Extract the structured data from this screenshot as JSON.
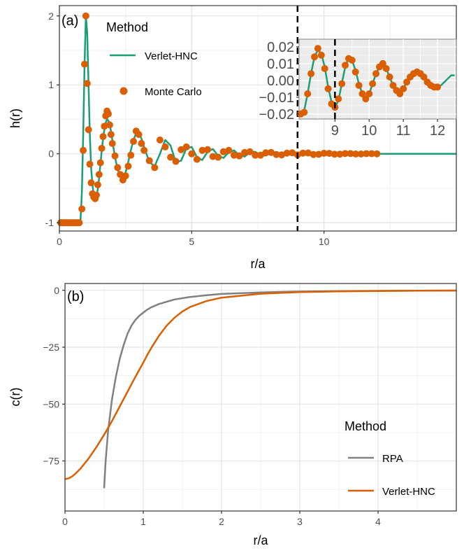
{
  "chart_data": [
    {
      "type": "line+scatter",
      "panel_label": "(a)",
      "xlabel": "r/a",
      "ylabel": "h(r)",
      "xlim": [
        0,
        15
      ],
      "ylim": [
        -1.12,
        2.15
      ],
      "xticks": [
        0,
        5,
        10
      ],
      "xtick_labels": [
        "0",
        "5",
        "10"
      ],
      "yticks": [
        -1,
        0,
        1,
        2
      ],
      "ytick_labels": [
        "-1",
        "0",
        "1",
        "2"
      ],
      "legend": {
        "title": "Method",
        "position": "top-left",
        "entries": [
          {
            "label": "Verlet-HNC",
            "kind": "line",
            "color": "#1b9e77"
          },
          {
            "label": "Monte Carlo",
            "kind": "point",
            "color": "#d95f02"
          }
        ]
      },
      "vline": 9,
      "series": [
        {
          "name": "Verlet-HNC",
          "kind": "line",
          "color": "#1b9e77",
          "x": [
            0,
            0.7,
            0.8,
            0.85,
            0.9,
            0.95,
            1.0,
            1.05,
            1.1,
            1.15,
            1.2,
            1.25,
            1.3,
            1.35,
            1.4,
            1.45,
            1.5,
            1.55,
            1.6,
            1.65,
            1.7,
            1.75,
            1.8,
            1.85,
            1.9,
            1.95,
            2.0,
            2.1,
            2.2,
            2.3,
            2.4,
            2.5,
            2.6,
            2.7,
            2.8,
            2.9,
            3.0,
            3.1,
            3.2,
            3.4,
            3.6,
            3.8,
            4.0,
            4.2,
            4.4,
            4.6,
            4.8,
            5.0,
            5.2,
            5.4,
            5.6,
            5.8,
            6.0,
            6.2,
            6.4,
            6.6,
            6.8,
            7.0,
            7.2,
            7.4,
            7.6,
            7.8,
            8.0,
            8.2,
            8.4,
            8.6,
            8.8,
            9.0,
            9.2,
            9.4,
            9.6,
            9.8,
            10.0,
            10.2,
            10.4,
            10.6,
            10.8,
            11.0,
            11.2,
            11.4,
            11.6,
            11.8,
            12.0,
            12.5,
            13.0,
            13.5,
            14.0,
            14.5,
            15.0
          ],
          "y": [
            -1.0,
            -1.0,
            -0.95,
            -0.55,
            0.3,
            1.3,
            2.0,
            1.75,
            1.0,
            0.3,
            -0.2,
            -0.45,
            -0.6,
            -0.65,
            -0.62,
            -0.52,
            -0.35,
            -0.15,
            0.05,
            0.22,
            0.35,
            0.45,
            0.5,
            0.48,
            0.42,
            0.33,
            0.2,
            -0.05,
            -0.22,
            -0.33,
            -0.35,
            -0.27,
            -0.12,
            0.05,
            0.2,
            0.3,
            0.3,
            0.22,
            0.1,
            -0.12,
            -0.18,
            0.0,
            0.2,
            0.12,
            -0.12,
            -0.1,
            0.08,
            0.1,
            -0.05,
            -0.09,
            0.03,
            0.07,
            -0.03,
            -0.06,
            0.02,
            0.05,
            -0.02,
            -0.04,
            0.02,
            0.03,
            -0.02,
            -0.025,
            0.015,
            0.02,
            -0.01,
            -0.02,
            0.01,
            0.015,
            -0.01,
            -0.01,
            0.01,
            0.01,
            -0.005,
            -0.008,
            0.005,
            0.006,
            -0.004,
            -0.005,
            0.003,
            0.004,
            -0.002,
            -0.003,
            0.0,
            0.0,
            0.0,
            0.0,
            0.0,
            0.0,
            0.0
          ]
        },
        {
          "name": "Monte Carlo",
          "kind": "point",
          "color": "#d95f02",
          "x": [
            0.05,
            0.12,
            0.19,
            0.26,
            0.33,
            0.4,
            0.47,
            0.54,
            0.61,
            0.68,
            0.75,
            0.85,
            0.9,
            0.95,
            1.0,
            1.05,
            1.1,
            1.15,
            1.2,
            1.25,
            1.3,
            1.35,
            1.4,
            1.45,
            1.5,
            1.55,
            1.6,
            1.65,
            1.7,
            1.75,
            1.8,
            1.85,
            1.9,
            1.95,
            2.0,
            2.1,
            2.2,
            2.3,
            2.4,
            2.5,
            2.6,
            2.7,
            2.8,
            2.9,
            3.0,
            3.1,
            3.2,
            3.4,
            3.6,
            3.8,
            4.0,
            4.2,
            4.4,
            4.6,
            4.8,
            5.0,
            5.2,
            5.4,
            5.6,
            5.8,
            6.0,
            6.2,
            6.4,
            6.6,
            6.8,
            7.0,
            7.2,
            7.4,
            7.6,
            7.8,
            8.0,
            8.2,
            8.4,
            8.6,
            8.8,
            9.0,
            9.2,
            9.4,
            9.6,
            9.8,
            10.0,
            10.2,
            10.4,
            10.6,
            10.8,
            11.0,
            11.2,
            11.4,
            11.6,
            11.8,
            12.0
          ],
          "y": [
            -1.0,
            -1.0,
            -1.0,
            -1.0,
            -1.0,
            -1.0,
            -1.0,
            -1.0,
            -1.0,
            -1.0,
            -1.0,
            -0.8,
            0.05,
            1.3,
            2.0,
            1.02,
            0.35,
            -0.15,
            -0.42,
            -0.58,
            -0.63,
            -0.65,
            -0.6,
            -0.45,
            -0.3,
            -0.13,
            0.08,
            0.25,
            0.4,
            0.55,
            0.62,
            0.58,
            0.42,
            0.28,
            0.15,
            -0.03,
            -0.2,
            -0.3,
            -0.38,
            -0.32,
            -0.18,
            -0.02,
            0.18,
            0.33,
            0.28,
            0.15,
            0.05,
            -0.1,
            -0.2,
            0.2,
            0.1,
            -0.05,
            -0.11,
            0.06,
            0.1,
            0.0,
            -0.08,
            0.05,
            0.06,
            -0.04,
            -0.05,
            0.03,
            0.05,
            -0.02,
            -0.03,
            0.02,
            0.03,
            -0.02,
            -0.02,
            0.015,
            0.02,
            -0.01,
            -0.015,
            0.01,
            0.015,
            -0.015,
            0.01,
            0.012,
            -0.01,
            -0.008,
            0.008,
            0.006,
            -0.005,
            -0.005,
            0.004,
            0.004,
            -0.003,
            -0.003,
            0.002,
            0.002,
            0.0
          ]
        }
      ],
      "inset": {
        "xlim": [
          7.95,
          12.55
        ],
        "ylim": [
          -0.023,
          0.0245
        ],
        "xticks": [
          9,
          10,
          11,
          12
        ],
        "xtick_labels": [
          "9",
          "10",
          "11",
          "12"
        ],
        "yticks": [
          0.02,
          0.01,
          0.0,
          -0.01,
          -0.02
        ],
        "ytick_labels": [
          "0.02",
          "0.01",
          "0.00",
          "−0.01",
          "−0.02"
        ],
        "vline": 9,
        "line": {
          "x": [
            8.0,
            8.1,
            8.2,
            8.3,
            8.4,
            8.5,
            8.6,
            8.7,
            8.8,
            8.9,
            9.0,
            9.1,
            9.2,
            9.3,
            9.4,
            9.5,
            9.6,
            9.7,
            9.8,
            9.9,
            10.0,
            10.1,
            10.2,
            10.3,
            10.4,
            10.5,
            10.6,
            10.7,
            10.8,
            10.9,
            11.0,
            11.1,
            11.2,
            11.3,
            11.4,
            11.5,
            11.6,
            11.7,
            11.8,
            11.9,
            12.0,
            12.1,
            12.2,
            12.3,
            12.4,
            12.5
          ],
          "y": [
            -0.02,
            -0.018,
            -0.008,
            0.004,
            0.014,
            0.018,
            0.016,
            0.008,
            -0.004,
            -0.013,
            -0.016,
            -0.012,
            -0.002,
            0.008,
            0.013,
            0.012,
            0.006,
            -0.002,
            -0.008,
            -0.01,
            -0.008,
            -0.002,
            0.004,
            0.008,
            0.009,
            0.007,
            0.002,
            -0.003,
            -0.006,
            -0.007,
            -0.005,
            -0.001,
            0.002,
            0.004,
            0.005,
            0.004,
            0.002,
            -0.001,
            -0.003,
            -0.004,
            -0.004,
            -0.003,
            -0.001,
            0.001,
            0.003,
            0.003
          ]
        },
        "points": {
          "x": [
            8.0,
            8.1,
            8.2,
            8.3,
            8.4,
            8.5,
            8.6,
            8.7,
            8.8,
            8.9,
            9.0,
            9.1,
            9.2,
            9.3,
            9.4,
            9.5,
            9.6,
            9.7,
            9.8,
            9.9,
            10.0,
            10.1,
            10.2,
            10.3,
            10.4,
            10.5,
            10.6,
            10.7,
            10.8,
            10.9,
            11.0,
            11.1,
            11.2,
            11.3,
            11.4,
            11.5,
            11.6,
            11.7,
            11.8,
            11.9,
            12.0
          ],
          "y": [
            -0.02,
            -0.019,
            -0.008,
            0.004,
            0.014,
            0.019,
            0.015,
            0.007,
            -0.005,
            -0.014,
            -0.016,
            -0.011,
            -0.002,
            0.009,
            0.013,
            0.012,
            0.005,
            -0.003,
            -0.008,
            -0.011,
            -0.008,
            -0.002,
            0.004,
            0.008,
            0.01,
            0.007,
            0.002,
            -0.003,
            -0.006,
            -0.008,
            -0.005,
            -0.001,
            0.002,
            0.004,
            0.005,
            0.004,
            0.002,
            -0.001,
            -0.003,
            -0.004,
            -0.004
          ]
        }
      }
    },
    {
      "type": "line",
      "panel_label": "(b)",
      "xlabel": "r/a",
      "ylabel": "c(r)",
      "xlim": [
        0,
        5.0
      ],
      "ylim": [
        -97,
        3
      ],
      "xticks": [
        0,
        1,
        2,
        3,
        4
      ],
      "xtick_labels": [
        "0",
        "1",
        "2",
        "3",
        "4"
      ],
      "yticks": [
        0,
        -25,
        -50,
        -75
      ],
      "ytick_labels": [
        "0",
        "−25",
        "−50",
        "−75"
      ],
      "legend": {
        "title": "Method",
        "position": "bottom-right",
        "entries": [
          {
            "label": "RPA",
            "kind": "line",
            "color": "#808080"
          },
          {
            "label": "Verlet-HNC",
            "kind": "line",
            "color": "#d95f02"
          }
        ]
      },
      "series": [
        {
          "name": "RPA",
          "color": "#808080",
          "x": [
            0.5,
            0.52,
            0.55,
            0.6,
            0.65,
            0.7,
            0.75,
            0.8,
            0.85,
            0.9,
            0.95,
            1.0,
            1.05,
            1.1,
            1.2,
            1.4,
            1.6,
            1.8,
            2.0,
            2.5,
            3.0,
            3.5,
            4.0,
            4.5,
            5.0
          ],
          "y": [
            -87,
            -75,
            -62,
            -48,
            -38,
            -30,
            -24,
            -19,
            -15.5,
            -13,
            -11.2,
            -9.8,
            -8.5,
            -7.5,
            -6,
            -4,
            -2.9,
            -2.2,
            -1.6,
            -0.9,
            -0.55,
            -0.35,
            -0.22,
            -0.15,
            -0.1
          ]
        },
        {
          "name": "Verlet-HNC",
          "color": "#d95f02",
          "x": [
            0.0,
            0.05,
            0.1,
            0.15,
            0.2,
            0.3,
            0.4,
            0.5,
            0.6,
            0.7,
            0.8,
            0.9,
            1.0,
            1.05,
            1.1,
            1.2,
            1.3,
            1.4,
            1.5,
            1.6,
            1.8,
            2.0,
            2.5,
            3.0,
            3.5,
            4.0,
            4.5,
            5.0
          ],
          "y": [
            -83,
            -82.6,
            -81.6,
            -80,
            -78.3,
            -74,
            -69,
            -63.5,
            -57.5,
            -51,
            -44.5,
            -38,
            -31.8,
            -28.5,
            -25.5,
            -20,
            -15.5,
            -12,
            -9.3,
            -7.3,
            -4.8,
            -3.2,
            -1.5,
            -0.8,
            -0.45,
            -0.28,
            -0.18,
            -0.12
          ]
        }
      ]
    }
  ]
}
